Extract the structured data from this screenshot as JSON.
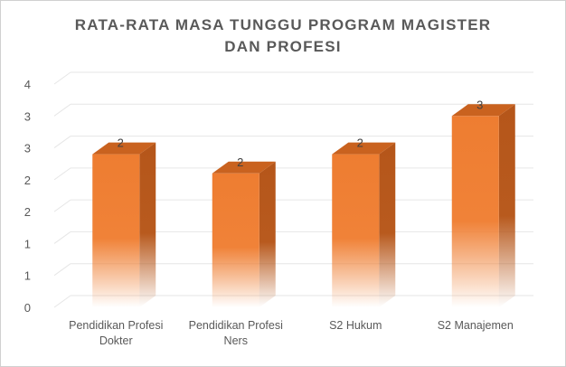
{
  "chart_data": {
    "type": "bar",
    "title": "RATA-RATA MASA TUNGGU PROGRAM MAGISTER\nDAN PROFESI",
    "categories": [
      [
        "Pendidikan Profesi",
        "Dokter"
      ],
      [
        "Pendidikan Profesi",
        "Ners"
      ],
      [
        "S2 Hukum"
      ],
      [
        "S2 Manajemen"
      ]
    ],
    "values": [
      2.4,
      2.1,
      2.4,
      3.0
    ],
    "data_labels": [
      "2",
      "2",
      "2",
      "3"
    ],
    "y_tick_labels": [
      "0",
      "1",
      "1",
      "2",
      "2",
      "3",
      "3",
      "4"
    ],
    "ylim": [
      0,
      3.5
    ],
    "grid": true,
    "bar_style": "3d",
    "colors": {
      "bar_front": "#ee7d31",
      "bar_side": "#b5561a",
      "bar_top": "#c9621f",
      "grid": "#e6e6e6",
      "text": "#595959"
    }
  }
}
